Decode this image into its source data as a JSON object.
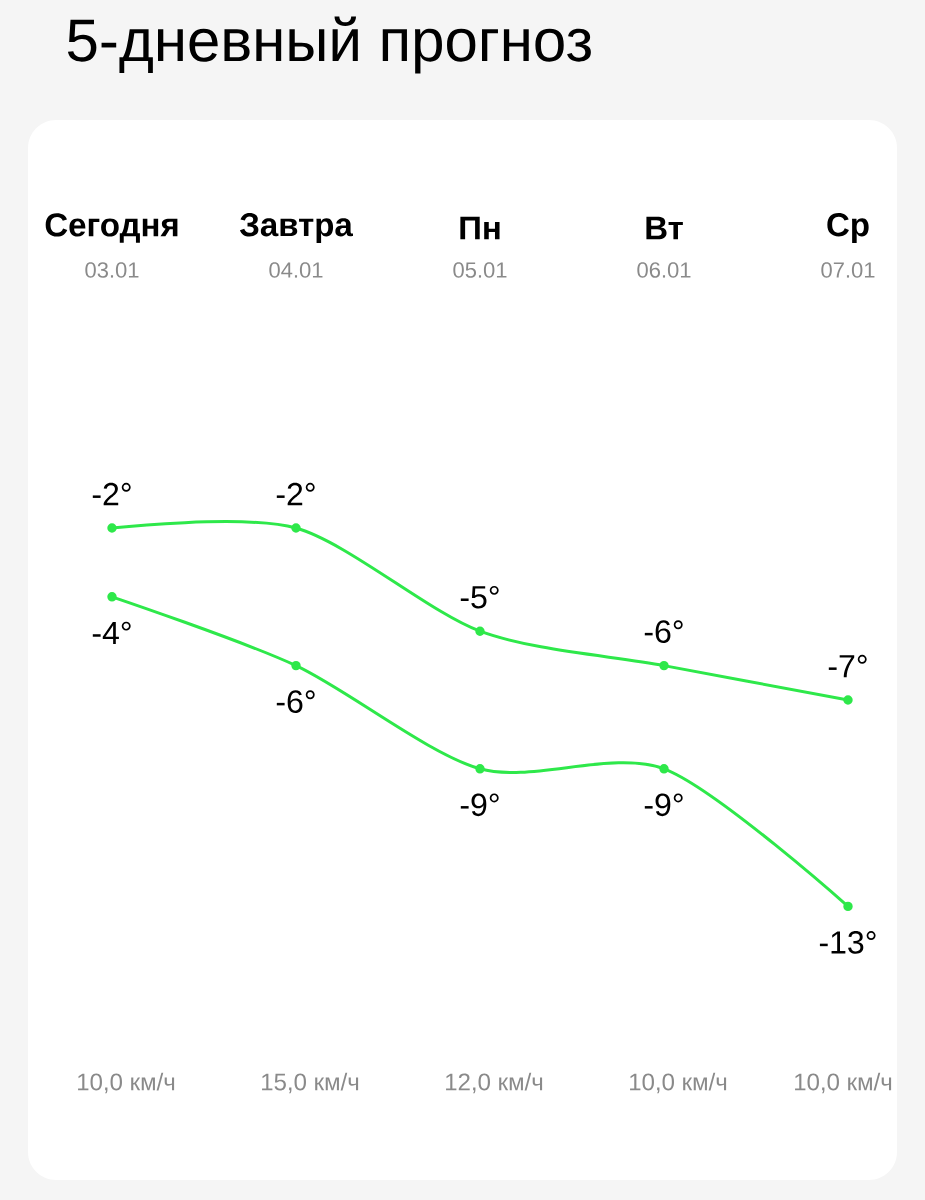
{
  "chart_data": {
    "type": "line",
    "title": "5-дневный прогноз",
    "categories": [
      "Сегодня",
      "Завтра",
      "Пн",
      "Вт",
      "Ср"
    ],
    "series": [
      {
        "color": "#2ee84a",
        "values": [
          -2,
          -2,
          -5,
          -6,
          -7
        ],
        "value_labels": [
          "-2°",
          "-2°",
          "-5°",
          "-6°",
          "-7°"
        ]
      },
      {
        "color": "#2ee84a",
        "values": [
          -4,
          -6,
          -9,
          -9,
          -13
        ],
        "value_labels": [
          "-4°",
          "-6°",
          "-9°",
          "-9°",
          "-13°"
        ]
      }
    ],
    "annotations": [
      "03.01",
      "04.01",
      "05.01",
      "06.01",
      "07.01",
      "10,0 км/ч",
      "15,0 км/ч",
      "12,0 км/ч",
      "10,0 км/ч",
      "10,0 км/ч"
    ],
    "marker": "circle",
    "line_style": "solid"
  }
}
